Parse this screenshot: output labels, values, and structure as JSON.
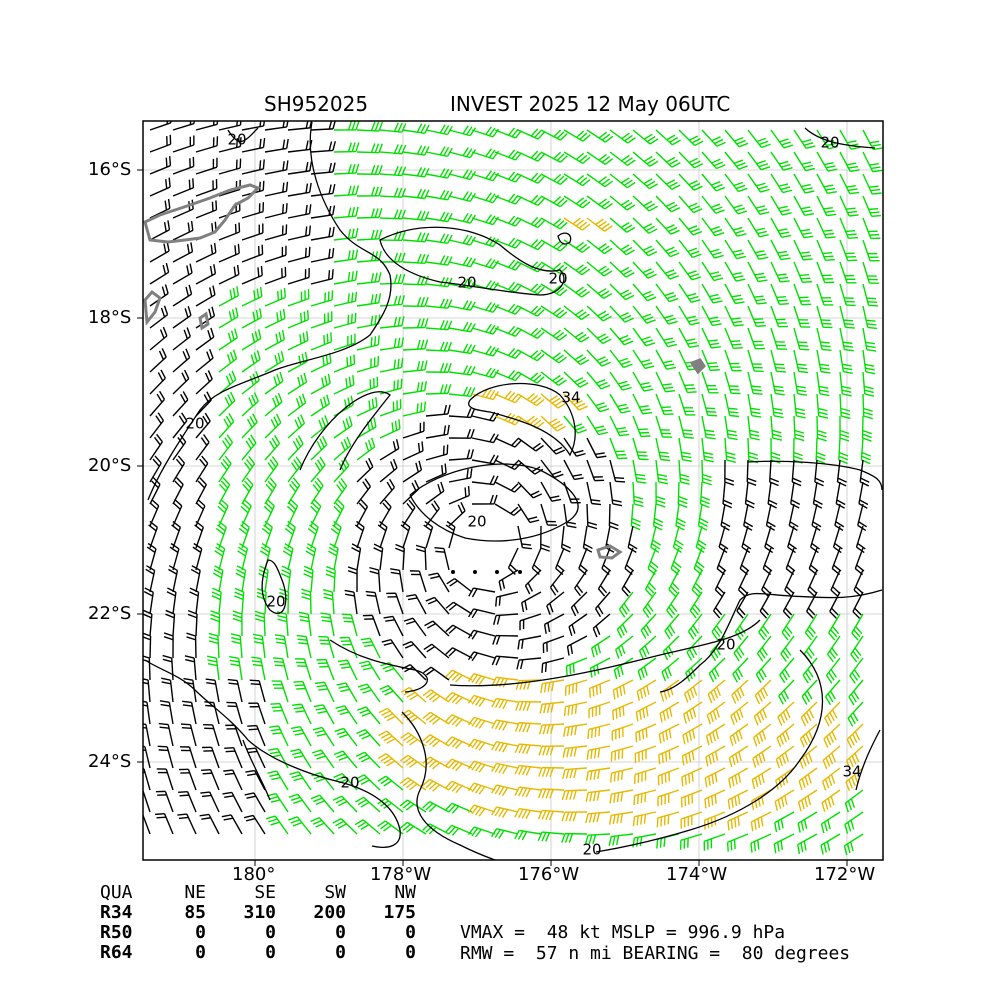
{
  "title": {
    "storm_id": "SH952025",
    "storm_name_time": "INVEST 2025 12 May 06UTC"
  },
  "map": {
    "lat_labels": [
      "16°S",
      "18°S",
      "20°S",
      "22°S",
      "24°S"
    ],
    "lon_labels": [
      "180°",
      "178°W",
      "176°W",
      "174°W",
      "172°W"
    ],
    "contour_labels": [
      "20",
      "20",
      "20",
      "34",
      "20",
      "20",
      "20",
      "20",
      "20",
      "34",
      "20",
      "20"
    ],
    "colors": {
      "below_34kt_barb": "#000000",
      "gale_34_50kt_barb": "#00e000",
      "storm_50_64kt_barb": "#e6b800",
      "coastline": "#808080",
      "contour": "#000000",
      "grid": "#c8c8c8"
    },
    "barb_legend": [
      "black",
      "green",
      "yellow"
    ]
  },
  "radii": {
    "header": [
      "QUA",
      "NE",
      "SE",
      "SW",
      "NW"
    ],
    "rows": [
      {
        "label": "R34",
        "values": [
          "85",
          "310",
          "200",
          "175"
        ]
      },
      {
        "label": "R50",
        "values": [
          "0",
          "0",
          "0",
          "0"
        ]
      },
      {
        "label": "R64",
        "values": [
          "0",
          "0",
          "0",
          "0"
        ]
      }
    ]
  },
  "info": {
    "line1": "VMAX =  48 kt MSLP = 996.9 hPa",
    "line2": "RMW =  57 n mi BEARING =  80 degrees"
  }
}
